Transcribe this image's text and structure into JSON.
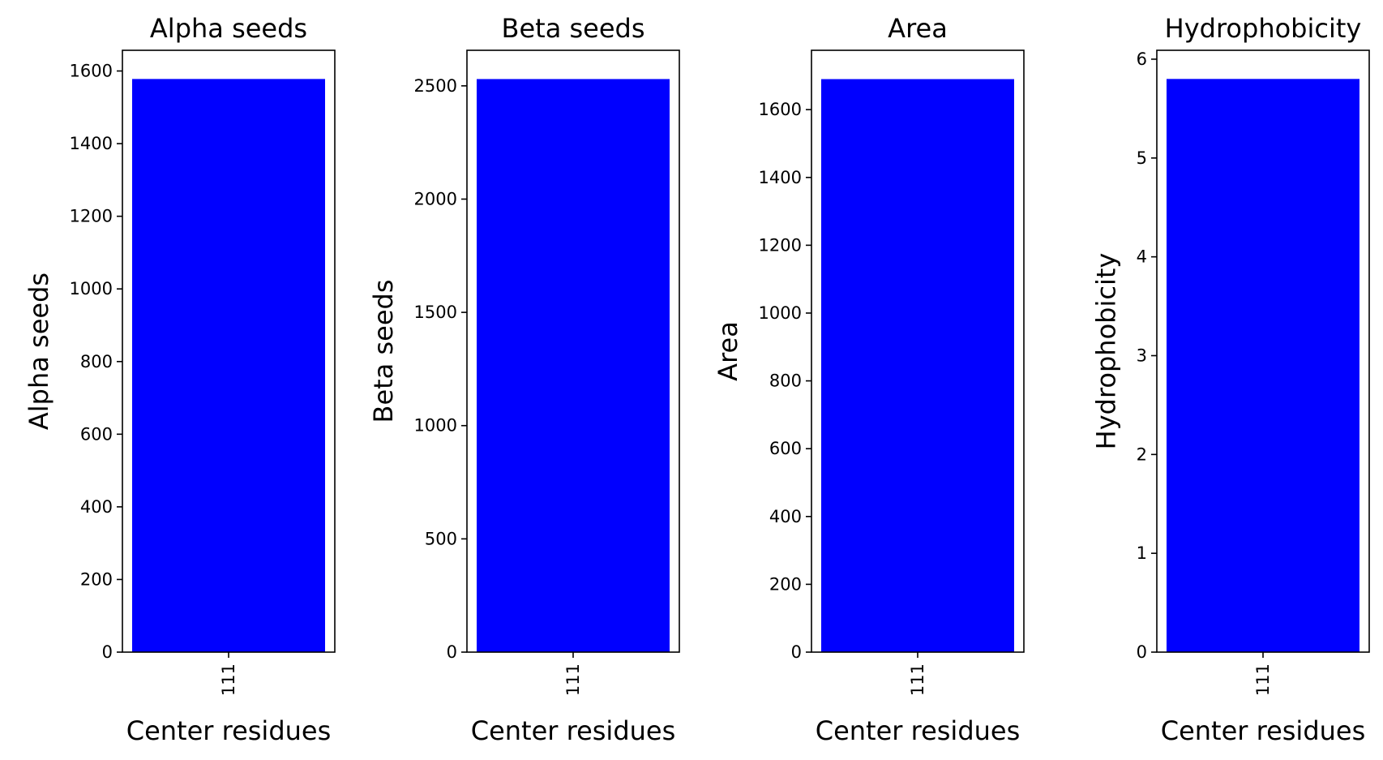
{
  "chart_data": [
    {
      "type": "bar",
      "title": "Alpha seeds",
      "xlabel": "Center residues",
      "ylabel": "Alpha seeds",
      "categories": [
        "111"
      ],
      "values": [
        1578
      ],
      "ylim": [
        0,
        1657
      ],
      "yticks": [
        0,
        200,
        400,
        600,
        800,
        1000,
        1200,
        1400,
        1600
      ],
      "color": "#0000ff",
      "grid": false
    },
    {
      "type": "bar",
      "title": "Beta seeds",
      "xlabel": "Center residues",
      "ylabel": "Beta seeds",
      "categories": [
        "111"
      ],
      "values": [
        2530
      ],
      "ylim": [
        0,
        2657
      ],
      "yticks": [
        0,
        500,
        1000,
        1500,
        2000,
        2500
      ],
      "color": "#0000ff",
      "grid": false
    },
    {
      "type": "bar",
      "title": "Area",
      "xlabel": "Center residues",
      "ylabel": "Area",
      "categories": [
        "111"
      ],
      "values": [
        1690
      ],
      "ylim": [
        0,
        1775
      ],
      "yticks": [
        0,
        200,
        400,
        600,
        800,
        1000,
        1200,
        1400,
        1600
      ],
      "color": "#0000ff",
      "grid": false
    },
    {
      "type": "bar",
      "title": "Hydrophobicity",
      "xlabel": "Center residues",
      "ylabel": "Hydrophobicity",
      "categories": [
        "111"
      ],
      "values": [
        5.8
      ],
      "ylim": [
        0,
        6.09
      ],
      "yticks": [
        0,
        1,
        2,
        3,
        4,
        5,
        6
      ],
      "color": "#0000ff",
      "grid": false
    }
  ]
}
